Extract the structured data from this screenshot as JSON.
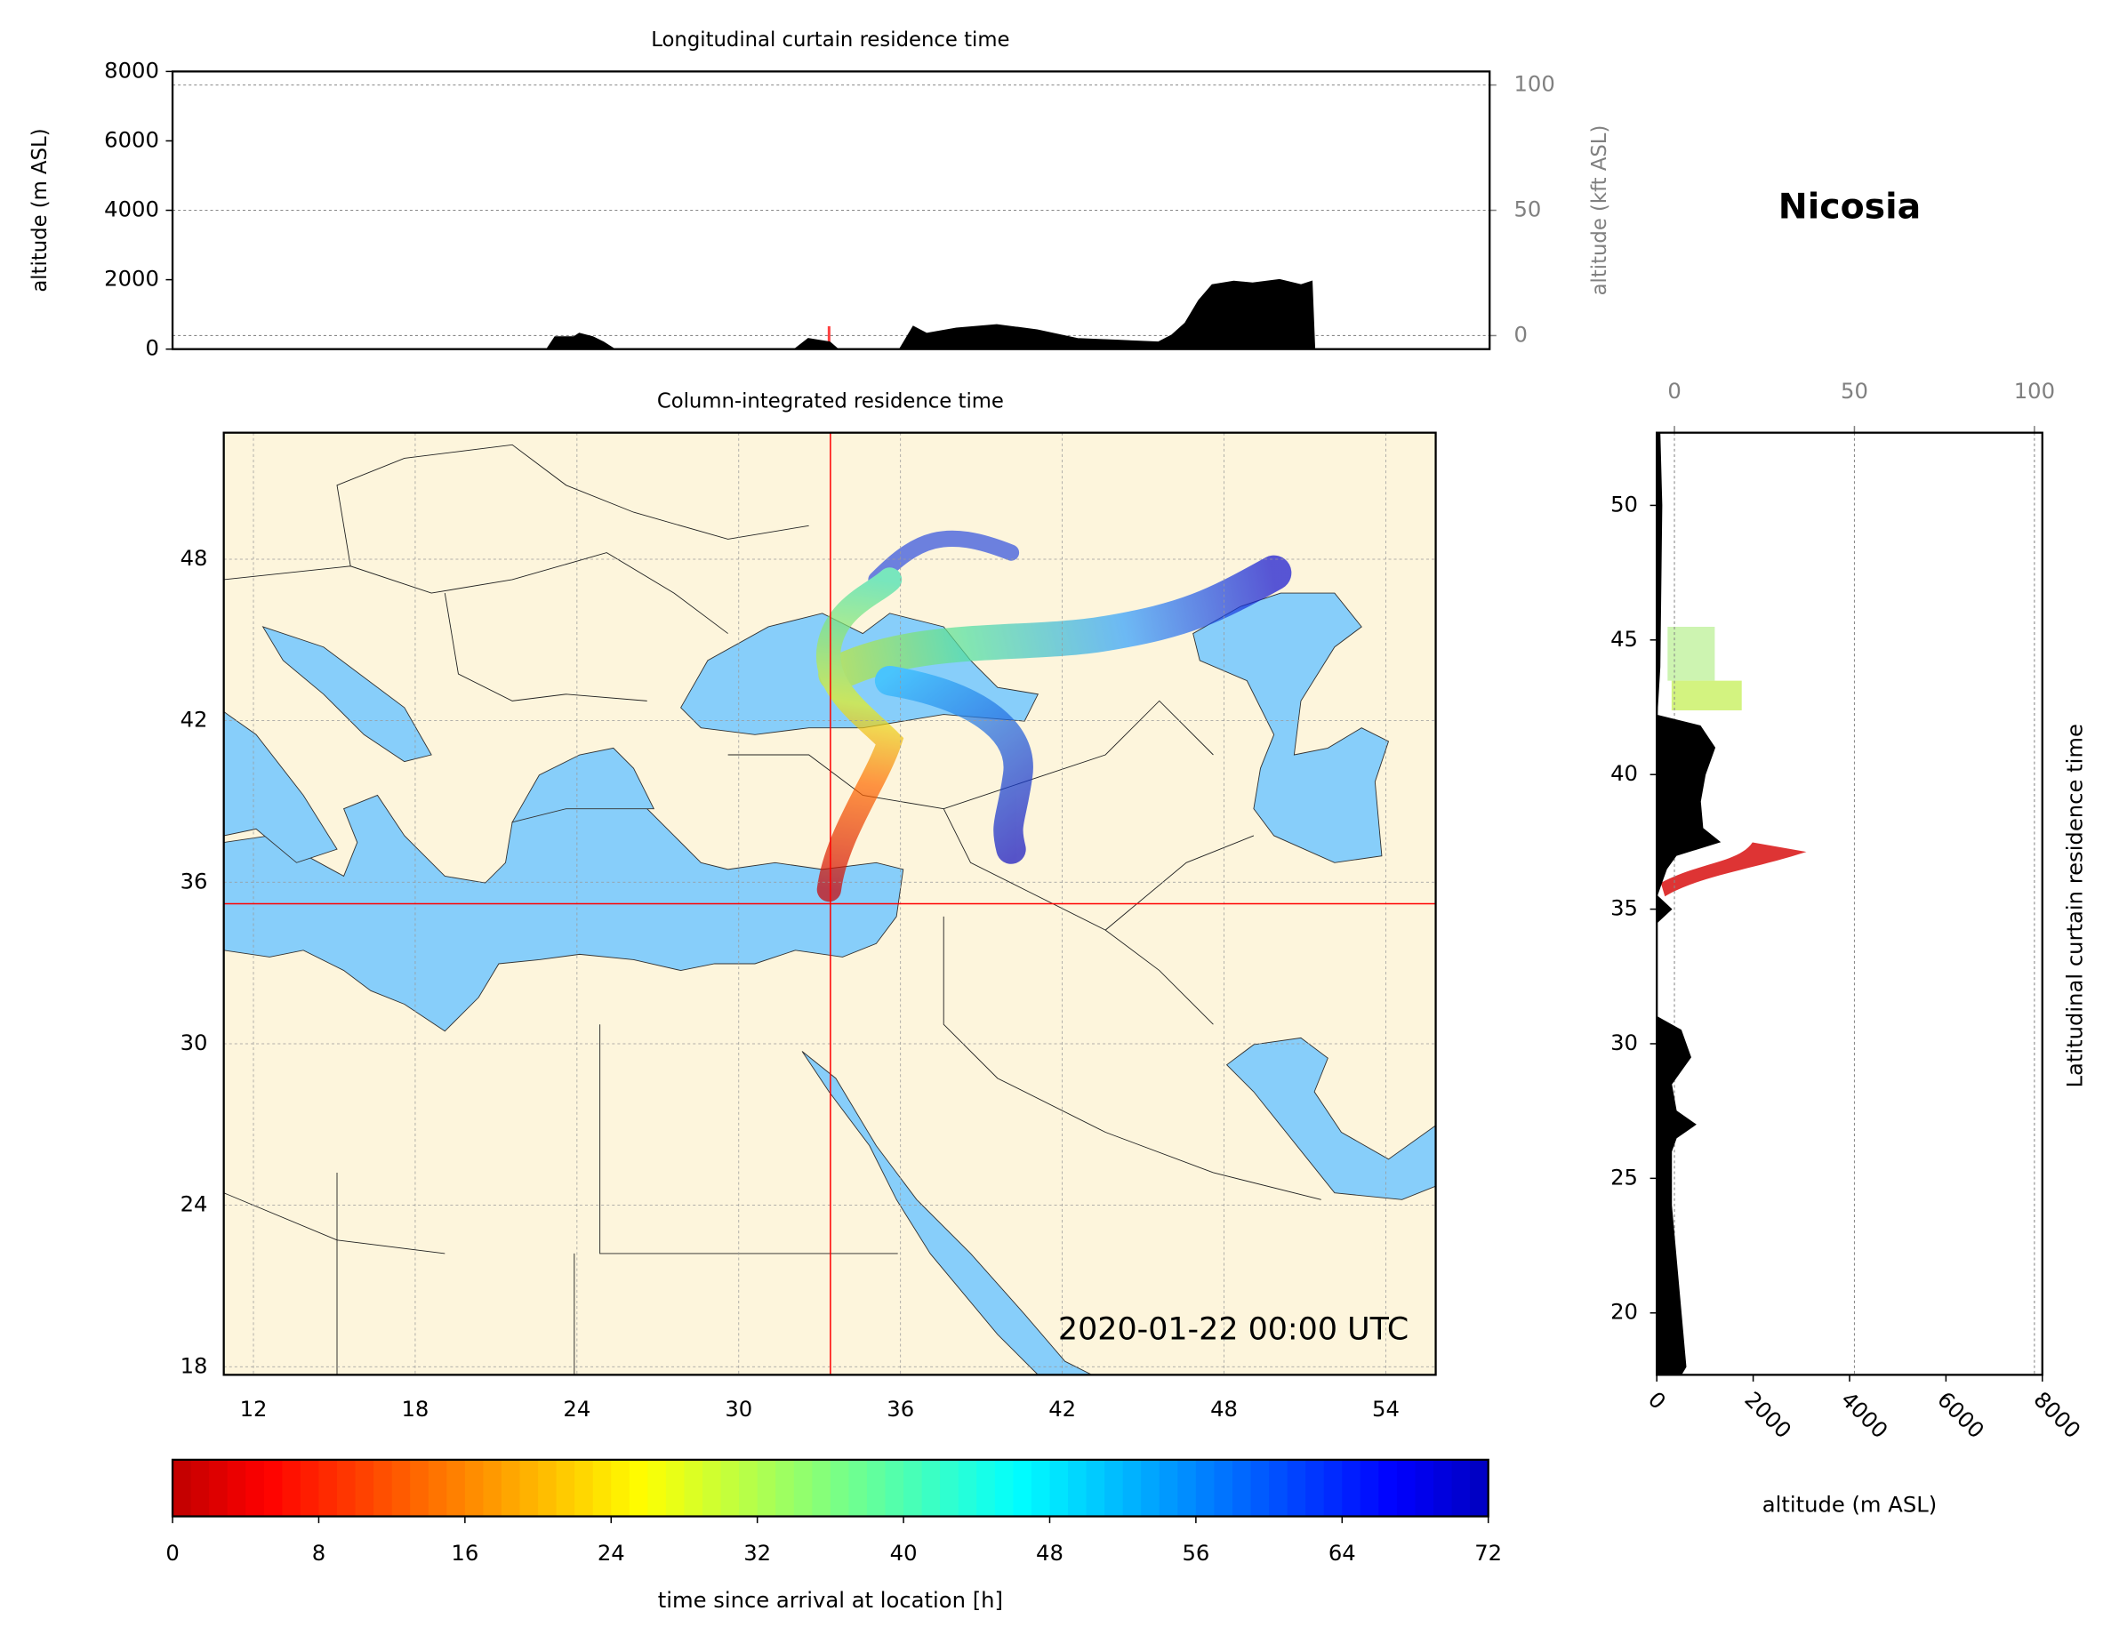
{
  "title": "Nicosia",
  "chart_data": [
    {
      "type": "area",
      "title": "Longitudinal curtain residence time",
      "ylabel": "altitude (m ASL)",
      "y2label": "altitude (kft ASL)",
      "x": [
        22.9,
        23.2,
        23.9,
        24.1,
        24.6,
        25.0,
        25.4,
        32.1,
        32.6,
        33.4,
        33.7,
        36.0,
        36.5,
        37.0,
        38.1,
        39.6,
        41.1,
        42.6,
        44.1,
        45.6,
        46.1,
        46.6,
        47.1,
        47.6,
        48.4,
        49.1,
        50.1,
        50.9,
        51.3,
        51.4
      ],
      "values": [
        0,
        350,
        350,
        450,
        350,
        200,
        0,
        0,
        300,
        200,
        0,
        0,
        650,
        450,
        600,
        700,
        550,
        300,
        250,
        200,
        400,
        750,
        1400,
        1850,
        1950,
        1900,
        2000,
        1850,
        1950,
        0
      ],
      "color": "#000000",
      "xlim": [
        9.0,
        57.9
      ],
      "ylim": [
        0,
        8000
      ],
      "yticks": [
        0,
        2000,
        4000,
        6000,
        8000
      ],
      "y2lim": [
        -5.4,
        105.4
      ],
      "y2ticks": [
        0,
        50,
        100
      ],
      "grid": true
    },
    {
      "type": "map",
      "title": "Column-integrated residence time",
      "annotation": "2020-01-22 00:00 UTC",
      "xlim": [
        10.9,
        55.85
      ],
      "ylim": [
        17.7,
        52.7
      ],
      "xticks": [
        12,
        18,
        24,
        30,
        36,
        42,
        48,
        54
      ],
      "yticks": [
        18,
        24,
        30,
        36,
        42,
        48
      ],
      "grid": true,
      "station": {
        "lon": 33.4,
        "lat": 35.2,
        "color": "#ff0000"
      },
      "land_color": "#fdf5dc",
      "sea_color": "#87cefa",
      "colorbar": {
        "label": "time since arrival at location [h]",
        "colormap": "jet",
        "clim": [
          0,
          72
        ],
        "ticks": [
          0,
          8,
          16,
          24,
          32,
          40,
          48,
          56,
          64,
          72
        ]
      }
    },
    {
      "type": "area",
      "orientation": "horizontal",
      "ylabel": "Latitudinal curtain residence time",
      "xlabel": "altitude (m ASL)",
      "y": [
        52.7,
        50,
        47,
        44,
        42.2,
        41.8,
        41,
        40,
        39,
        38,
        37.5,
        37,
        36.5,
        36,
        35.5,
        35,
        34.5,
        31,
        30.5,
        29.5,
        28.5,
        27.5,
        27,
        26.5,
        26,
        24,
        22,
        20,
        18,
        17.7
      ],
      "values": [
        60,
        100,
        80,
        60,
        0,
        900,
        1200,
        1000,
        900,
        950,
        1300,
        400,
        200,
        100,
        0,
        300,
        0,
        0,
        500,
        700,
        300,
        400,
        800,
        400,
        300,
        300,
        400,
        500,
        600,
        500
      ],
      "color": "#000000",
      "xlim": [
        0,
        8000
      ],
      "xticks": [
        0,
        2000,
        4000,
        6000,
        8000
      ],
      "x2lim": [
        -4.9,
        102.2
      ],
      "x2ticks": [
        0,
        50,
        100
      ],
      "ylim": [
        17.7,
        52.7
      ],
      "yticks": [
        20,
        25,
        30,
        35,
        40,
        45,
        50
      ],
      "grid": true
    }
  ]
}
